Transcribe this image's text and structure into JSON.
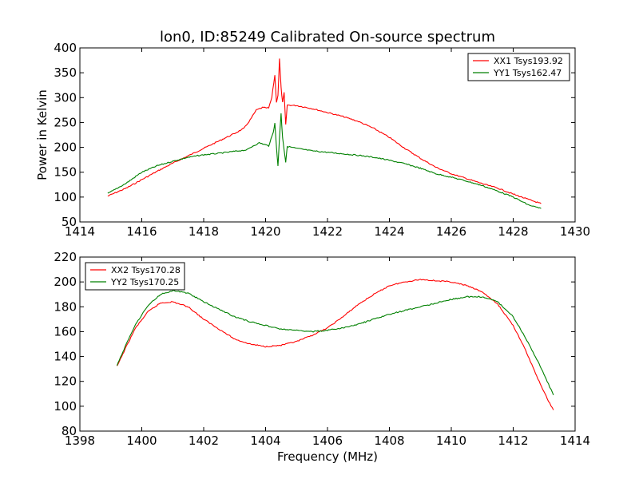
{
  "title": "lon0, ID:85249 Calibrated On-source spectrum",
  "xlabel": "Frequency (MHz)",
  "chart_data": [
    {
      "type": "line",
      "ylabel": "Power in Kelvin",
      "xlim": [
        1414,
        1430
      ],
      "ylim": [
        50,
        400
      ],
      "xticks": [
        1414,
        1416,
        1418,
        1420,
        1422,
        1424,
        1426,
        1428,
        1430
      ],
      "yticks": [
        50,
        100,
        150,
        200,
        250,
        300,
        350,
        400
      ],
      "legend": "top-right",
      "series": [
        {
          "name": "XX1 Tsys193.92",
          "color": "#ff0000",
          "points": [
            [
              1414.9,
              102
            ],
            [
              1415.5,
              118
            ],
            [
              1416,
              135
            ],
            [
              1416.5,
              152
            ],
            [
              1417,
              168
            ],
            [
              1417.5,
              183
            ],
            [
              1418,
              198
            ],
            [
              1418.5,
              213
            ],
            [
              1419,
              228
            ],
            [
              1419.3,
              238
            ],
            [
              1419.5,
              255
            ],
            [
              1419.7,
              275
            ],
            [
              1419.9,
              280
            ],
            [
              1420.1,
              279
            ],
            [
              1420.2,
              300
            ],
            [
              1420.3,
              345
            ],
            [
              1420.35,
              290
            ],
            [
              1420.4,
              305
            ],
            [
              1420.45,
              378
            ],
            [
              1420.5,
              320
            ],
            [
              1420.55,
              290
            ],
            [
              1420.6,
              310
            ],
            [
              1420.65,
              245
            ],
            [
              1420.7,
              285
            ],
            [
              1421,
              284
            ],
            [
              1421.5,
              278
            ],
            [
              1422,
              270
            ],
            [
              1422.5,
              262
            ],
            [
              1423,
              252
            ],
            [
              1423.5,
              238
            ],
            [
              1424,
              220
            ],
            [
              1424.5,
              198
            ],
            [
              1425,
              178
            ],
            [
              1425.5,
              160
            ],
            [
              1426,
              147
            ],
            [
              1426.5,
              137
            ],
            [
              1427,
              127
            ],
            [
              1427.5,
              118
            ],
            [
              1428,
              106
            ],
            [
              1428.5,
              95
            ],
            [
              1428.9,
              87
            ]
          ]
        },
        {
          "name": "YY1 Tsys162.47",
          "color": "#008000",
          "points": [
            [
              1414.9,
              107
            ],
            [
              1415.5,
              128
            ],
            [
              1416,
              150
            ],
            [
              1416.5,
              163
            ],
            [
              1417,
              172
            ],
            [
              1417.5,
              180
            ],
            [
              1418,
              185
            ],
            [
              1418.5,
              188
            ],
            [
              1419,
              192
            ],
            [
              1419.4,
              195
            ],
            [
              1419.6,
              203
            ],
            [
              1419.8,
              209
            ],
            [
              1420.1,
              203
            ],
            [
              1420.25,
              230
            ],
            [
              1420.3,
              250
            ],
            [
              1420.35,
              200
            ],
            [
              1420.4,
              163
            ],
            [
              1420.45,
              220
            ],
            [
              1420.5,
              268
            ],
            [
              1420.55,
              220
            ],
            [
              1420.6,
              195
            ],
            [
              1420.65,
              170
            ],
            [
              1420.7,
              202
            ],
            [
              1421,
              198
            ],
            [
              1421.5,
              193
            ],
            [
              1422,
              190
            ],
            [
              1422.5,
              187
            ],
            [
              1423,
              184
            ],
            [
              1423.5,
              180
            ],
            [
              1424,
              174
            ],
            [
              1424.5,
              167
            ],
            [
              1425,
              158
            ],
            [
              1425.5,
              147
            ],
            [
              1426,
              140
            ],
            [
              1426.5,
              132
            ],
            [
              1427,
              123
            ],
            [
              1427.5,
              112
            ],
            [
              1428,
              100
            ],
            [
              1428.5,
              84
            ],
            [
              1428.9,
              77
            ]
          ]
        }
      ]
    },
    {
      "type": "line",
      "ylabel": "",
      "xlim": [
        1398,
        1414
      ],
      "ylim": [
        80,
        220
      ],
      "xticks": [
        1398,
        1400,
        1402,
        1404,
        1406,
        1408,
        1410,
        1412,
        1414
      ],
      "yticks": [
        80,
        100,
        120,
        140,
        160,
        180,
        200,
        220
      ],
      "legend": "top-left",
      "series": [
        {
          "name": "XX2 Tsys170.28",
          "color": "#ff0000",
          "points": [
            [
              1399.2,
              132
            ],
            [
              1399.5,
              148
            ],
            [
              1399.8,
              163
            ],
            [
              1400.2,
              176
            ],
            [
              1400.6,
              183
            ],
            [
              1401,
              184
            ],
            [
              1401.5,
              180
            ],
            [
              1402,
              170
            ],
            [
              1402.5,
              162
            ],
            [
              1403,
              154
            ],
            [
              1403.5,
              150
            ],
            [
              1404,
              148
            ],
            [
              1404.5,
              149
            ],
            [
              1405,
              152
            ],
            [
              1405.5,
              157
            ],
            [
              1406,
              163
            ],
            [
              1406.5,
              172
            ],
            [
              1407,
              182
            ],
            [
              1407.5,
              190
            ],
            [
              1408,
              197
            ],
            [
              1408.5,
              200
            ],
            [
              1409,
              202
            ],
            [
              1409.5,
              201
            ],
            [
              1410,
              200
            ],
            [
              1410.5,
              197
            ],
            [
              1411,
              192
            ],
            [
              1411.5,
              182
            ],
            [
              1412,
              165
            ],
            [
              1412.4,
              145
            ],
            [
              1412.8,
              122
            ],
            [
              1413.1,
              106
            ],
            [
              1413.3,
              97
            ]
          ]
        },
        {
          "name": "YY2 Tsys170.25",
          "color": "#008000",
          "points": [
            [
              1399.2,
              133
            ],
            [
              1399.5,
              150
            ],
            [
              1399.8,
              166
            ],
            [
              1400.2,
              181
            ],
            [
              1400.6,
              190
            ],
            [
              1401,
              193
            ],
            [
              1401.5,
              191
            ],
            [
              1402,
              184
            ],
            [
              1402.5,
              178
            ],
            [
              1403,
              172
            ],
            [
              1403.5,
              168
            ],
            [
              1404,
              165
            ],
            [
              1404.5,
              162
            ],
            [
              1405,
              161
            ],
            [
              1405.5,
              160
            ],
            [
              1406,
              161
            ],
            [
              1406.5,
              163
            ],
            [
              1407,
              166
            ],
            [
              1407.5,
              170
            ],
            [
              1408,
              174
            ],
            [
              1408.5,
              177
            ],
            [
              1409,
              180
            ],
            [
              1409.5,
              183
            ],
            [
              1410,
              186
            ],
            [
              1410.5,
              188
            ],
            [
              1411,
              188
            ],
            [
              1411.5,
              184
            ],
            [
              1412,
              172
            ],
            [
              1412.4,
              155
            ],
            [
              1412.8,
              136
            ],
            [
              1413.1,
              120
            ],
            [
              1413.3,
              109
            ]
          ]
        }
      ]
    }
  ]
}
